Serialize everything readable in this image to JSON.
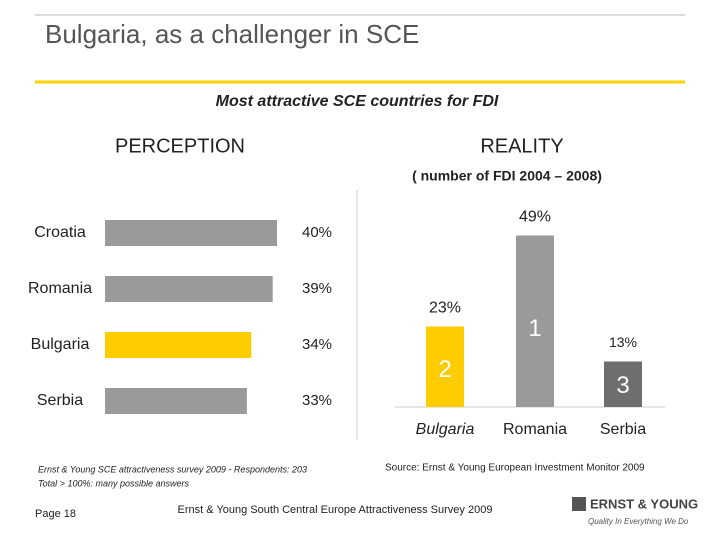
{
  "header": {
    "title": "Bulgaria, as a challenger in SCE",
    "subtitle": "Most attractive SCE countries for FDI"
  },
  "chart_data": [
    {
      "type": "hbar",
      "title": "PERCEPTION",
      "categories": [
        "Croatia",
        "Romania",
        "Bulgaria",
        "Serbia"
      ],
      "values": [
        40,
        39,
        34,
        33
      ],
      "value_labels": [
        "40%",
        "39%",
        "34%",
        "33%"
      ],
      "colors": [
        "#9a9a9a",
        "#9a9a9a",
        "#ffcc00",
        "#9a9a9a"
      ],
      "source": [
        "Ernst & Young SCE attractiveness survey 2009 - Respondents: 203",
        "Total > 100%: many possible answers"
      ]
    },
    {
      "type": "bar",
      "title": "REALITY",
      "subtitle": "( number of FDI 2004 – 2008)",
      "categories": [
        "Bulgaria",
        "Romania",
        "Serbia"
      ],
      "values": [
        23,
        49,
        13
      ],
      "value_labels": [
        "23%",
        "49%",
        "13%"
      ],
      "ranks": [
        2,
        1,
        3
      ],
      "colors": [
        "#ffcc00",
        "#9a9a9a",
        "#6e6e6e"
      ],
      "source": "Source: Ernst & Young European Investment Monitor 2009"
    }
  ],
  "footer": {
    "page": "Page 18",
    "center": "Ernst & Young South Central Europe Attractiveness Survey 2009",
    "logo": "ERNST & YOUNG",
    "tagline": "Quality In Everything We Do"
  }
}
